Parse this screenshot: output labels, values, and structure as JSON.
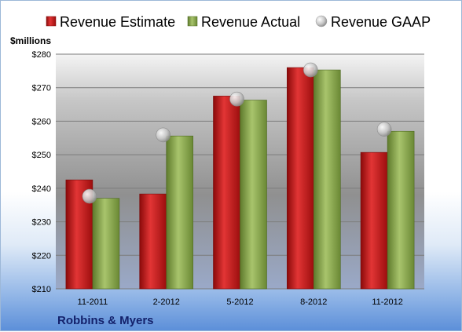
{
  "chart_data": {
    "type": "bar",
    "unit_label": "$millions",
    "categories": [
      "11-2011",
      "2-2012",
      "5-2012",
      "8-2012",
      "11-2012"
    ],
    "series": [
      {
        "name": "Revenue Estimate",
        "kind": "bar",
        "color": "#cc1e1e",
        "values": [
          242.5,
          238.3,
          267.5,
          276.0,
          250.7
        ]
      },
      {
        "name": "Revenue Actual",
        "kind": "bar",
        "color": "#8fae52",
        "values": [
          237.0,
          255.6,
          266.3,
          275.3,
          257.0
        ]
      },
      {
        "name": "Revenue GAAP",
        "kind": "marker",
        "color": "#c8c8c8",
        "values": [
          237.6,
          255.9,
          266.6,
          275.3,
          257.6
        ]
      }
    ],
    "ylim": [
      210,
      280
    ],
    "yticks": [
      210,
      220,
      230,
      240,
      250,
      260,
      270,
      280
    ],
    "ytick_labels": [
      "$210",
      "$220",
      "$230",
      "$240",
      "$250",
      "$260",
      "$270",
      "$280"
    ],
    "grid": true,
    "legend_position": "top",
    "footer": "Robbins & Myers"
  }
}
